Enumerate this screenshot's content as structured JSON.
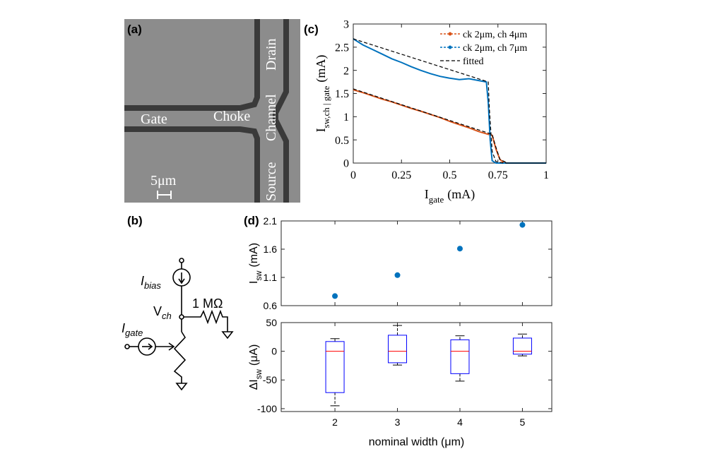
{
  "figure": {
    "panel_labels": [
      "(a)",
      "(b)",
      "(c)",
      "(d)"
    ],
    "image_labels": {
      "gate": "Gate",
      "choke": "Choke",
      "channel": "Channel",
      "drain": "Drain",
      "source": "Source",
      "scale": "5μm"
    },
    "circuit_labels": {
      "bias": {
        "text": "I",
        "subscript": "bias"
      },
      "vch": {
        "text": "V",
        "subscript": "ch"
      },
      "resistor": "1 MΩ",
      "gate": {
        "text": "I",
        "subscript": "gate"
      }
    }
  },
  "chart_data": [
    {
      "type": "line",
      "xlabel": {
        "text": "I",
        "subscript": "gate",
        "unit": "(mA)"
      },
      "ylabel": {
        "text": "I",
        "subscript": "sw,ch | gate",
        "unit": "(mA)"
      },
      "xlim": [
        0,
        1
      ],
      "ylim": [
        0,
        3
      ],
      "xticks": [
        0,
        0.25,
        0.5,
        0.75,
        1
      ],
      "yticks": [
        0,
        0.5,
        1,
        1.5,
        2,
        2.5,
        3
      ],
      "legend": "upper right",
      "series": [
        {
          "name": "ck 2μm, ch 4μm",
          "color": "#d95319",
          "marker": "dot",
          "x": [
            0,
            0.05,
            0.1,
            0.15,
            0.2,
            0.25,
            0.3,
            0.35,
            0.4,
            0.45,
            0.5,
            0.55,
            0.6,
            0.65,
            0.7,
            0.72,
            0.74,
            0.76,
            0.78,
            0.8,
            0.85,
            0.9,
            0.95,
            1
          ],
          "values": [
            1.58,
            1.52,
            1.45,
            1.38,
            1.32,
            1.25,
            1.18,
            1.12,
            1.05,
            0.98,
            0.9,
            0.83,
            0.76,
            0.68,
            0.62,
            0.6,
            0.3,
            0.08,
            0.01,
            0,
            0,
            0,
            0,
            0
          ]
        },
        {
          "name": "ck 2μm, ch 7μm",
          "color": "#0072bd",
          "marker": "dot",
          "x": [
            0,
            0.05,
            0.1,
            0.15,
            0.2,
            0.25,
            0.3,
            0.35,
            0.4,
            0.45,
            0.5,
            0.55,
            0.6,
            0.65,
            0.69,
            0.7,
            0.71,
            0.72,
            0.74,
            0.8,
            0.85,
            0.9,
            0.95,
            1
          ],
          "values": [
            2.68,
            2.55,
            2.45,
            2.35,
            2.25,
            2.17,
            2.08,
            2.0,
            1.93,
            1.87,
            1.83,
            1.8,
            1.82,
            1.78,
            1.75,
            1.3,
            0.5,
            0.05,
            0,
            0,
            0,
            0,
            0,
            0
          ]
        },
        {
          "name": "fitted",
          "color": "#000000",
          "dash": true,
          "x": [
            0,
            0.7,
            0.705,
            0.72,
            0.74,
            0.78,
            1,
            null,
            0,
            0.72,
            0.735,
            0.76,
            0.8,
            1
          ],
          "values": [
            2.68,
            1.75,
            1.2,
            0.25,
            0.03,
            0,
            0,
            null,
            1.6,
            0.62,
            0.4,
            0.08,
            0,
            0
          ]
        }
      ]
    },
    {
      "type": "scatter",
      "ylabel": {
        "text": "I",
        "subscript": "sw",
        "unit": "(mA)"
      },
      "xlim": [
        1.14,
        5.47
      ],
      "ylim": [
        0.6,
        2.1
      ],
      "yticks": [
        0.6,
        1.1,
        1.6,
        2.1
      ],
      "color": "#0072bd",
      "x": [
        2,
        3,
        4,
        5
      ],
      "values": [
        0.77,
        1.14,
        1.61,
        2.03
      ]
    },
    {
      "type": "box",
      "xlabel": {
        "text": "nominal width (μm)"
      },
      "ylabel": {
        "text": "ΔI",
        "subscript": "sw",
        "unit": "(μA)"
      },
      "xlim": [
        1.14,
        5.47
      ],
      "ylim": [
        -105,
        50
      ],
      "xticks": [
        2,
        3,
        4,
        5
      ],
      "yticks": [
        -100,
        -50,
        0,
        50
      ],
      "color": "#0000ff",
      "median_color": "#ff0000",
      "x": [
        2,
        3,
        4,
        5
      ],
      "boxes": [
        {
          "whislo": -95,
          "q1": -72,
          "med": 0,
          "q3": 17,
          "whishi": 22
        },
        {
          "whislo": -24,
          "q1": -20,
          "med": 0,
          "q3": 28,
          "whishi": 45
        },
        {
          "whislo": -52,
          "q1": -39,
          "med": 0,
          "q3": 20,
          "whishi": 27
        },
        {
          "whislo": -8,
          "q1": -5,
          "med": 0,
          "q3": 23,
          "whishi": 30
        }
      ]
    }
  ]
}
